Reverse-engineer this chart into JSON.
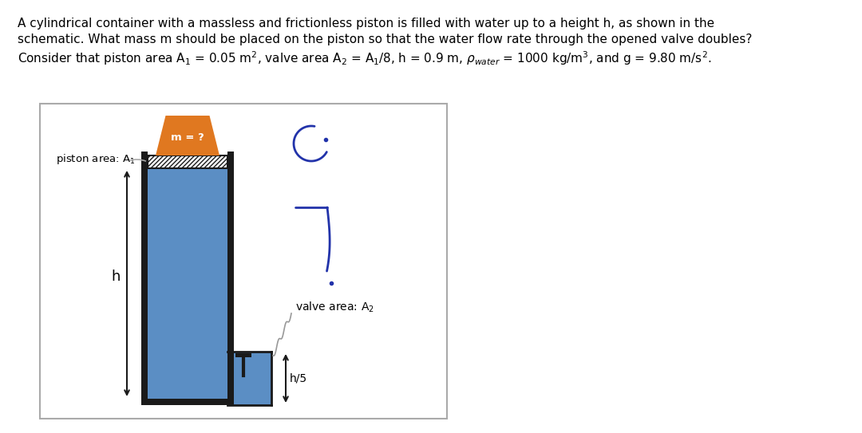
{
  "bg_color": "#ffffff",
  "title_line1": "A cylindrical container with a massless and frictionless piston is filled with water up to a height h, as shown in the",
  "title_line2": "schematic. What mass m should be placed on the piston so that the water flow rate through the opened valve doubles?",
  "title_line3": "Consider that piston area A$_1$ = 0.05 m$^2$, valve area A$_2$ = A$_1$/8, h = 0.9 m, $\\rho_{water}$ = 1000 kg/m$^3$, and g = 9.80 m/s$^2$.",
  "title_fontsize": 11.0,
  "water_color": "#5b8ec4",
  "wall_color": "#1a1a1a",
  "mass_color": "#e07820",
  "text_color": "#000000",
  "curve_color": "#2233aa",
  "arrow_color": "#333333",
  "box_color": "#aaaaaa",
  "valve_annot_color": "#888888"
}
